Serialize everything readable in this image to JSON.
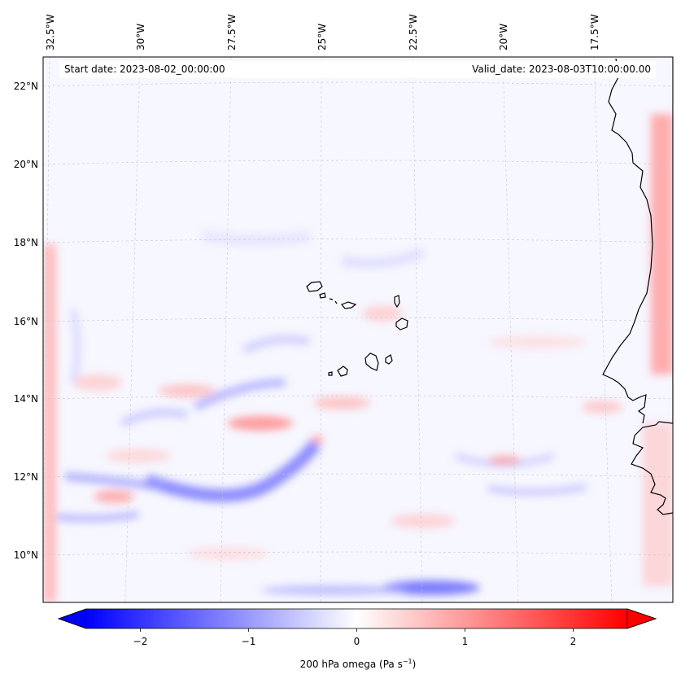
{
  "map": {
    "start_date": "Start date: 2023-08-02_00:00:00",
    "valid_date": "Valid_date: 2023-08-03T10:00:00.00",
    "lon_labels": [
      "32.5°W",
      "30°W",
      "27.5°W",
      "25°W",
      "22.5°W",
      "20°W",
      "17.5°W"
    ],
    "lat_labels": [
      "22°N",
      "20°N",
      "18°N",
      "16°N",
      "14°N",
      "12°N",
      "10°N"
    ],
    "field": "200 hPa omega",
    "units": "Pa s",
    "colormap": "bwr",
    "background_color": "#f7f7ff"
  },
  "colorbar": {
    "label_main": "200 hPa omega (Pa s",
    "label_sup": "−1",
    "label_end": ")",
    "tick_labels": [
      "−2",
      "−1",
      "0",
      "1",
      "2"
    ],
    "ticks": [
      -2,
      -1,
      0,
      1,
      2
    ],
    "range": [
      -2.5,
      2.5
    ],
    "extend": "both"
  }
}
